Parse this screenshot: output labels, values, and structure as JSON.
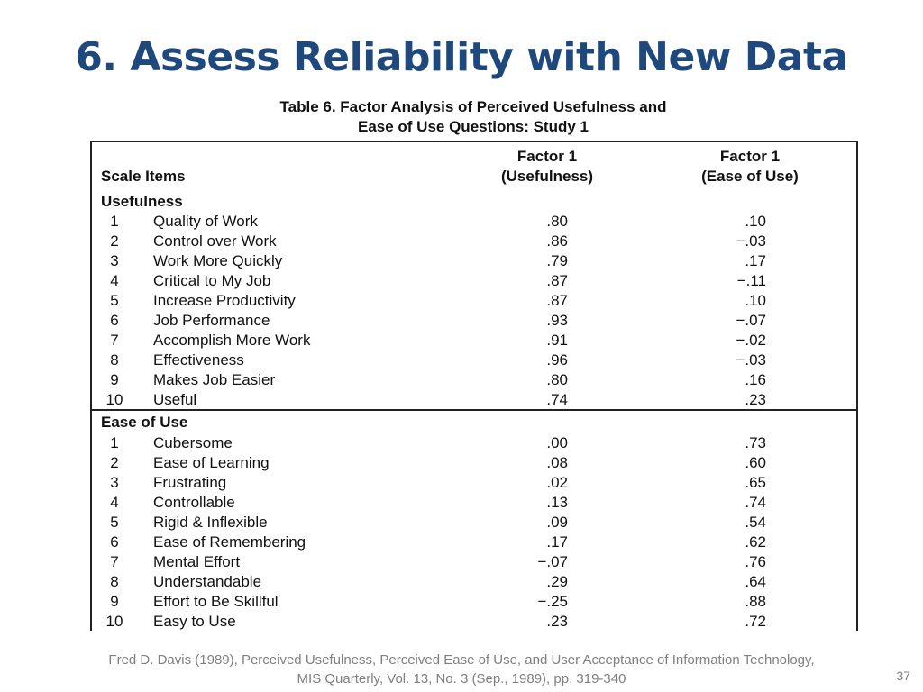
{
  "title": "6. Assess Reliability with New Data",
  "table": {
    "caption_line1": "Table 6. Factor Analysis of Perceived Usefulness and",
    "caption_line2": "Ease of Use Questions: Study 1",
    "header": {
      "scale_items": "Scale Items",
      "factor1_line1": "Factor 1",
      "factor1_line2": "(Usefulness)",
      "factor2_line1": "Factor 1",
      "factor2_line2": "(Ease of Use)"
    },
    "sections": [
      {
        "label": "Usefulness",
        "rows": [
          {
            "num": "1",
            "item": "Quality of Work",
            "f1": ".80",
            "f2": ".10"
          },
          {
            "num": "2",
            "item": "Control over Work",
            "f1": ".86",
            "f2": "−.03"
          },
          {
            "num": "3",
            "item": "Work More Quickly",
            "f1": ".79",
            "f2": ".17"
          },
          {
            "num": "4",
            "item": "Critical to My Job",
            "f1": ".87",
            "f2": "−.11"
          },
          {
            "num": "5",
            "item": "Increase Productivity",
            "f1": ".87",
            "f2": ".10"
          },
          {
            "num": "6",
            "item": "Job Performance",
            "f1": ".93",
            "f2": "−.07"
          },
          {
            "num": "7",
            "item": "Accomplish More Work",
            "f1": ".91",
            "f2": "−.02"
          },
          {
            "num": "8",
            "item": "Effectiveness",
            "f1": ".96",
            "f2": "−.03"
          },
          {
            "num": "9",
            "item": "Makes Job Easier",
            "f1": ".80",
            "f2": ".16"
          },
          {
            "num": "10",
            "item": "Useful",
            "f1": ".74",
            "f2": ".23"
          }
        ]
      },
      {
        "label": "Ease of Use",
        "rows": [
          {
            "num": "1",
            "item": "Cubersome",
            "f1": ".00",
            "f2": ".73"
          },
          {
            "num": "2",
            "item": "Ease of Learning",
            "f1": ".08",
            "f2": ".60"
          },
          {
            "num": "3",
            "item": "Frustrating",
            "f1": ".02",
            "f2": ".65"
          },
          {
            "num": "4",
            "item": "Controllable",
            "f1": ".13",
            "f2": ".74"
          },
          {
            "num": "5",
            "item": "Rigid & Inflexible",
            "f1": ".09",
            "f2": ".54"
          },
          {
            "num": "6",
            "item": "Ease of Remembering",
            "f1": ".17",
            "f2": ".62"
          },
          {
            "num": "7",
            "item": "Mental Effort",
            "f1": "−.07",
            "f2": ".76"
          },
          {
            "num": "8",
            "item": "Understandable",
            "f1": ".29",
            "f2": ".64"
          },
          {
            "num": "9",
            "item": "Effort to Be Skillful",
            "f1": "−.25",
            "f2": ".88"
          },
          {
            "num": "10",
            "item": "Easy to Use",
            "f1": ".23",
            "f2": ".72"
          }
        ]
      }
    ]
  },
  "footnote_line1": "Fred D. Davis (1989), Perceived Usefulness, Perceived Ease of Use, and User Acceptance of Information Technology,",
  "footnote_line2": "MIS Quarterly, Vol. 13, No. 3 (Sep., 1989), pp. 319-340",
  "page_number": "37"
}
